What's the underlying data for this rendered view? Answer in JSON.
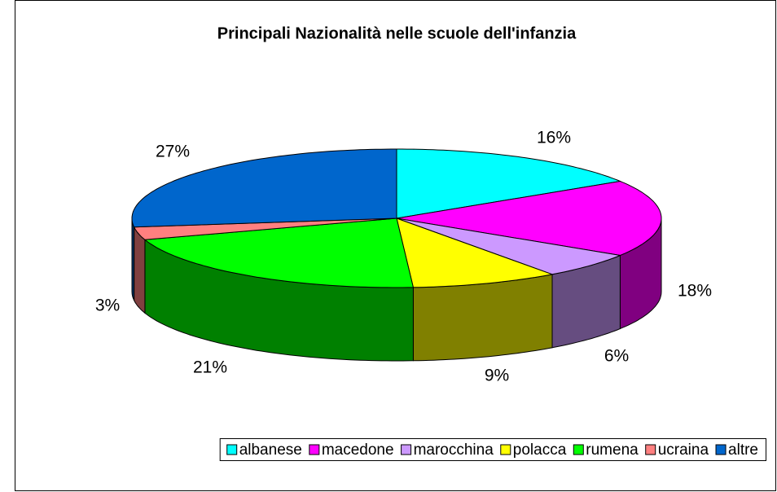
{
  "chart_data": {
    "type": "pie",
    "title": "Principali Nazionalità nelle scuole dell'infanzia",
    "categories": [
      "albanese",
      "macedone",
      "marocchina",
      "polacca",
      "rumena",
      "ucraina",
      "altre"
    ],
    "values": [
      16,
      18,
      6,
      9,
      21,
      3,
      27
    ],
    "value_labels": [
      "16%",
      "18%",
      "6%",
      "9%",
      "21%",
      "3%",
      "27%"
    ],
    "colors": [
      "#00FFFF",
      "#FF00FF",
      "#CC99FF",
      "#FFFF00",
      "#00FF00",
      "#FF8080",
      "#0066CC"
    ],
    "legend": "bottom"
  }
}
